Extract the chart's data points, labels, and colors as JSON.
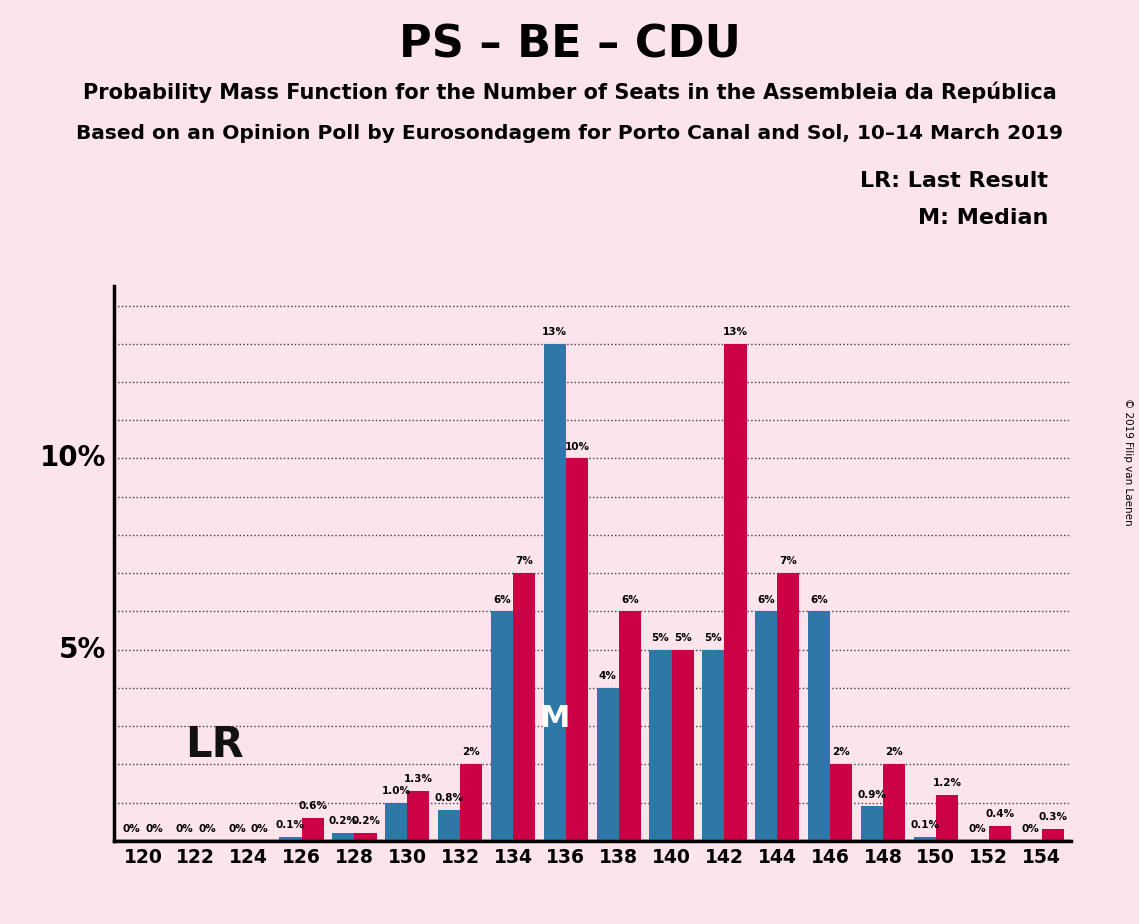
{
  "title": "PS – BE – CDU",
  "subtitle1": "Probability Mass Function for the Number of Seats in the Assembleia da República",
  "subtitle2": "Based on an Opinion Poll by Eurosondagem for Porto Canal and Sol, 10–14 March 2019",
  "copyright": "© 2019 Filip van Laenen",
  "legend_lr": "LR: Last Result",
  "legend_m": "M: Median",
  "lr_label": "LR",
  "m_label": "M",
  "background_color": "#fce4ec",
  "bar_color_blue": "#2e78a8",
  "bar_color_red": "#cc0044",
  "ylabel_10": "10%",
  "ylabel_5": "5%",
  "seats": [
    120,
    122,
    124,
    126,
    128,
    130,
    132,
    134,
    136,
    138,
    140,
    142,
    144,
    146,
    148,
    150,
    152,
    154
  ],
  "blue_values": [
    0.0,
    0.0,
    0.0,
    0.1,
    0.2,
    1.0,
    0.8,
    6.0,
    13.0,
    4.0,
    5.0,
    5.0,
    6.0,
    6.0,
    0.9,
    0.1,
    0.0,
    0.0
  ],
  "red_values": [
    0.0,
    0.0,
    0.0,
    0.6,
    0.2,
    1.3,
    2.0,
    7.0,
    10.0,
    6.0,
    5.0,
    13.0,
    7.0,
    2.0,
    2.0,
    1.2,
    0.4,
    0.3
  ],
  "blue_labels": [
    "0%",
    "0%",
    "0%",
    "0.1%",
    "0.2%",
    "1.0%",
    "0.8%",
    "6%",
    "13%",
    "4%",
    "5%",
    "5%",
    "6%",
    "6%",
    "0.9%",
    "0.1%",
    "0%",
    "0%"
  ],
  "red_labels": [
    "0%",
    "0%",
    "0%",
    "0.6%",
    "0.2%",
    "1.3%",
    "2%",
    "7%",
    "10%",
    "6%",
    "5%",
    "13%",
    "7%",
    "2%",
    "2%",
    "1.2%",
    "0.4%",
    "0.3%"
  ],
  "ylim": [
    0,
    14.5
  ],
  "grid_lines_y": [
    1,
    2,
    3,
    4,
    5,
    6,
    7,
    8,
    9,
    10,
    11,
    12,
    13,
    14
  ],
  "lr_seat": 122,
  "median_seat_index": 8,
  "show_blue_labels": [
    false,
    false,
    false,
    true,
    true,
    true,
    true,
    true,
    true,
    true,
    true,
    true,
    true,
    true,
    true,
    true,
    false,
    false
  ],
  "show_red_labels": [
    false,
    false,
    false,
    true,
    true,
    true,
    true,
    true,
    true,
    true,
    true,
    true,
    true,
    true,
    true,
    true,
    true,
    true
  ]
}
